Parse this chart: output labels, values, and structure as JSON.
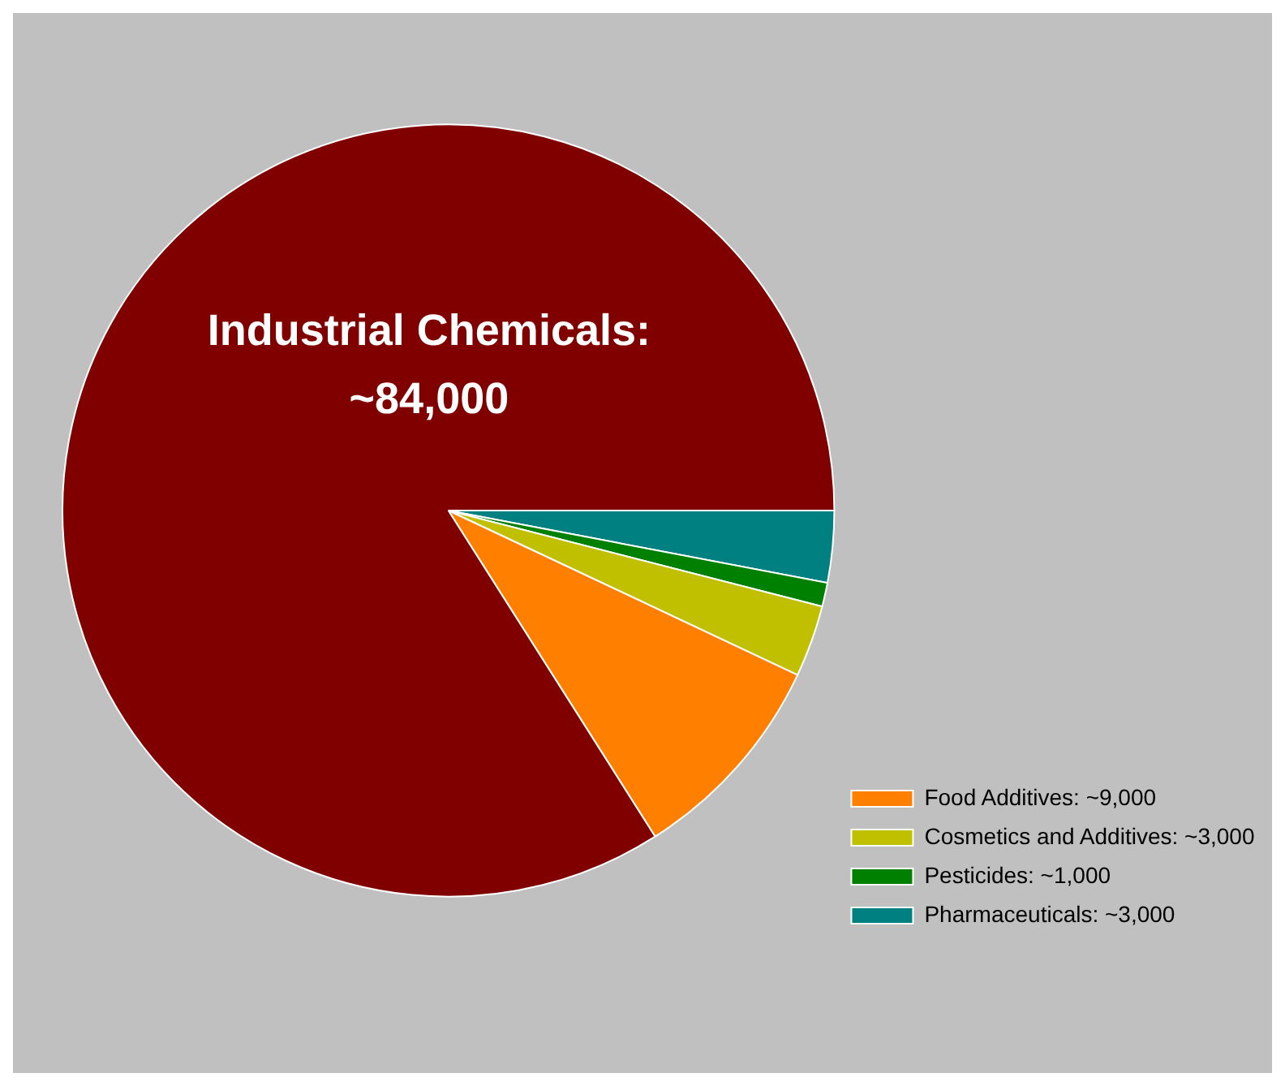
{
  "chart_data": {
    "type": "pie",
    "categories": [
      "Pharmaceuticals: ~3,000",
      "Pesticides: ~1,000",
      "Cosmetics and Additives: ~3,000",
      "Food Additives: ~9,000",
      null
    ],
    "values": [
      3000,
      1000,
      3000,
      9000,
      84000
    ],
    "colors": [
      "#008080",
      "#008000",
      "#c0c000",
      "#ff8000",
      "#800000"
    ],
    "annotations": [
      "Industrial Chemicals: ~84,000"
    ],
    "legend": "bottom right"
  }
}
